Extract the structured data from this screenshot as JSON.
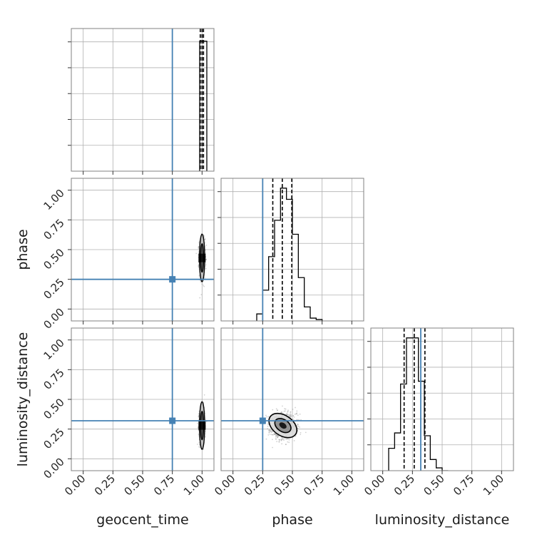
{
  "chart_data": {
    "type": "corner",
    "parameters": [
      "geocent_time",
      "phase",
      "luminosity_distance"
    ],
    "tick_labels": [
      "0.00",
      "0.25",
      "0.50",
      "0.75",
      "1.00"
    ],
    "range": [
      -0.1,
      1.1
    ],
    "grid": true,
    "colors": {
      "truth": "#4682b4",
      "hist": "#000000",
      "grid": "#b0b0b0",
      "frame": "#808080",
      "scatter": "#7f7f7f"
    },
    "truths": {
      "geocent_time": 0.75,
      "phase": 0.25,
      "luminosity_distance": 0.32
    },
    "quantiles": {
      "geocent_time": [
        0.985,
        1.0,
        1.012
      ],
      "phase": [
        0.335,
        0.415,
        0.495
      ],
      "luminosity_distance": [
        0.18,
        0.265,
        0.355
      ]
    },
    "histograms": {
      "geocent_time": {
        "edges": [
          0.98,
          0.99,
          1.0,
          1.01,
          1.02,
          1.03,
          1.04
        ],
        "counts": [
          0.93,
          0.93,
          0.93,
          0.93,
          0.93,
          0.93
        ]
      },
      "phase": {
        "edges": [
          0.2,
          0.25,
          0.3,
          0.35,
          0.4,
          0.45,
          0.5,
          0.55,
          0.6,
          0.65,
          0.7,
          0.75
        ],
        "counts": [
          0.05,
          0.22,
          0.46,
          0.72,
          0.95,
          0.87,
          0.62,
          0.31,
          0.1,
          0.02,
          0.01
        ]
      },
      "luminosity_distance": {
        "edges": [
          0.05,
          0.1,
          0.15,
          0.2,
          0.25,
          0.3,
          0.35,
          0.4,
          0.45,
          0.5,
          0.55
        ],
        "counts": [
          0.16,
          0.27,
          0.62,
          0.95,
          0.95,
          0.64,
          0.25,
          0.08,
          0.02,
          0.0
        ]
      }
    },
    "posterior_2d": {
      "geocent_time|phase": {
        "center": [
          1.0,
          0.43
        ],
        "sigma": [
          0.012,
          0.08
        ],
        "contour_widths": [
          [
            0.012,
            0.12
          ],
          [
            0.022,
            0.2
          ]
        ]
      },
      "geocent_time|luminosity_distance": {
        "center": [
          1.0,
          0.28
        ],
        "sigma": [
          0.012,
          0.075
        ],
        "contour_widths": [
          [
            0.012,
            0.12
          ],
          [
            0.022,
            0.2
          ]
        ]
      },
      "phase|luminosity_distance": {
        "center": [
          0.42,
          0.28
        ],
        "sigma": [
          0.06,
          0.055
        ],
        "contours": [
          {
            "rx": 0.075,
            "ry": 0.05,
            "angle": -35
          },
          {
            "rx": 0.13,
            "ry": 0.085,
            "angle": -35
          }
        ]
      }
    }
  }
}
